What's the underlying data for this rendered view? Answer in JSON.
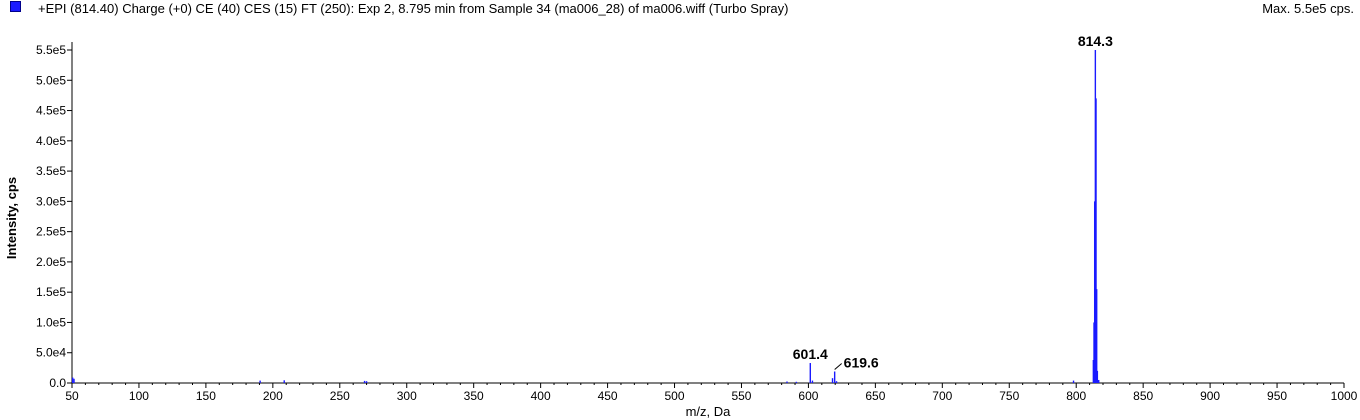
{
  "header": {
    "title": "+EPI (814.40) Charge (+0) CE (40) CES (15) FT (250): Exp 2, 8.795 min from Sample 34 (ma006_28) of ma006.wiff (Turbo Spray)",
    "max_label": "Max. 5.5e5 cps.",
    "series_color": "#1a1aff"
  },
  "chart_data": {
    "type": "bar",
    "xlabel": "m/z, Da",
    "ylabel": "Intensity, cps",
    "xlim": [
      50,
      1000
    ],
    "ylim": [
      0,
      550000
    ],
    "x_ticks": [
      50,
      100,
      150,
      200,
      250,
      300,
      350,
      400,
      450,
      500,
      550,
      600,
      650,
      700,
      750,
      800,
      850,
      900,
      950,
      1000
    ],
    "y_ticks": [
      {
        "value": 0,
        "label": "0.0"
      },
      {
        "value": 50000,
        "label": "5.0e4"
      },
      {
        "value": 100000,
        "label": "1.0e5"
      },
      {
        "value": 150000,
        "label": "1.5e5"
      },
      {
        "value": 200000,
        "label": "2.0e5"
      },
      {
        "value": 250000,
        "label": "2.5e5"
      },
      {
        "value": 300000,
        "label": "3.0e5"
      },
      {
        "value": 350000,
        "label": "3.5e5"
      },
      {
        "value": 400000,
        "label": "4.0e5"
      },
      {
        "value": 450000,
        "label": "4.5e5"
      },
      {
        "value": 500000,
        "label": "5.0e5"
      },
      {
        "value": 550000,
        "label": "5.5e5"
      }
    ],
    "peaks": [
      {
        "mz": 50.5,
        "intensity": 9000
      },
      {
        "mz": 51.5,
        "intensity": 7000
      },
      {
        "mz": 190.5,
        "intensity": 4000
      },
      {
        "mz": 208.5,
        "intensity": 4500
      },
      {
        "mz": 268.5,
        "intensity": 3500
      },
      {
        "mz": 270.0,
        "intensity": 3000
      },
      {
        "mz": 584.0,
        "intensity": 2500
      },
      {
        "mz": 591.0,
        "intensity": 2000
      },
      {
        "mz": 601.4,
        "intensity": 33000
      },
      {
        "mz": 603.0,
        "intensity": 4000
      },
      {
        "mz": 618.0,
        "intensity": 8000
      },
      {
        "mz": 619.6,
        "intensity": 19000
      },
      {
        "mz": 621.0,
        "intensity": 3000
      },
      {
        "mz": 798.0,
        "intensity": 4000
      },
      {
        "mz": 812.8,
        "intensity": 38000
      },
      {
        "mz": 813.3,
        "intensity": 100000
      },
      {
        "mz": 813.8,
        "intensity": 300000
      },
      {
        "mz": 814.3,
        "intensity": 550000
      },
      {
        "mz": 814.8,
        "intensity": 470000
      },
      {
        "mz": 815.3,
        "intensity": 155000
      },
      {
        "mz": 815.8,
        "intensity": 20000
      },
      {
        "mz": 816.8,
        "intensity": 5000
      }
    ],
    "annotations": [
      {
        "label": "601.4",
        "mz": 601.4,
        "intensity": 33000
      },
      {
        "label": "619.6",
        "mz": 619.6,
        "intensity": 19000
      },
      {
        "label": "814.3",
        "mz": 814.3,
        "intensity": 550000
      }
    ]
  }
}
